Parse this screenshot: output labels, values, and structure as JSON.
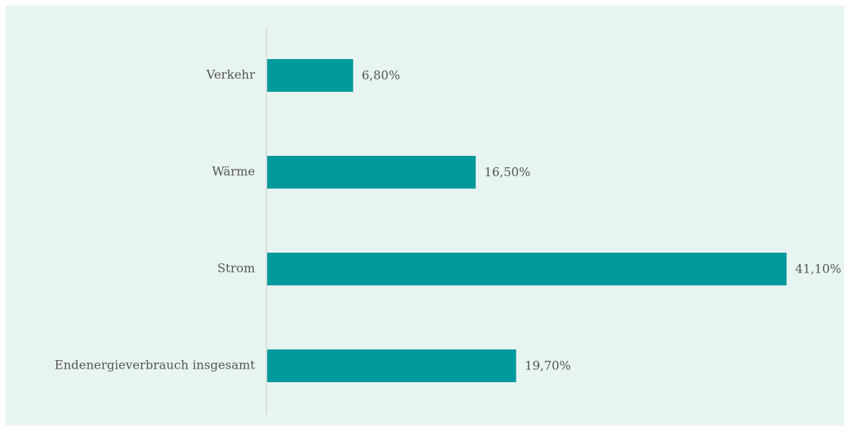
{
  "chart_data": {
    "type": "barh",
    "categories": [
      "Verkehr",
      "Wärme",
      "Strom",
      "Endenergieverbrauch insgesamt"
    ],
    "values": [
      6.8,
      16.5,
      41.1,
      19.7
    ],
    "value_labels": [
      "6,80%",
      "16,50%",
      "41,10%",
      "19,70%"
    ],
    "color": "#00999b"
  }
}
